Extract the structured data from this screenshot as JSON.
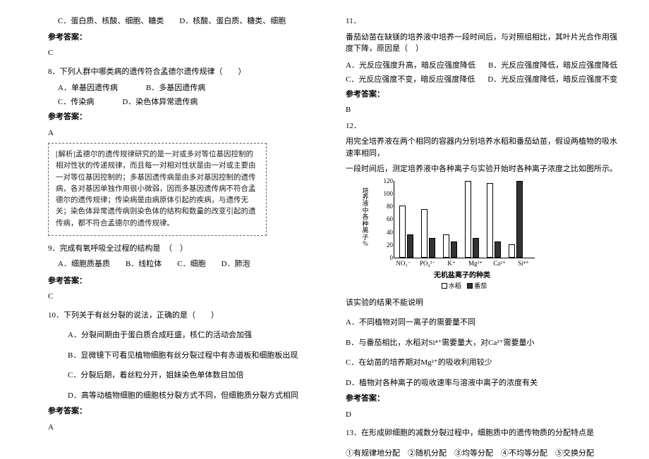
{
  "left": {
    "top_opts": "C．蛋白质、核酸、细胞、糖类　　D．核酸、蛋白质、糖类、细胞",
    "ans_label": "参考答案：",
    "ans_c1": "C",
    "q8": "8．下列人群中哪类病的遗传符合孟德尔遗传规律（　　）",
    "q8_a": "A．单基因遗传病",
    "q8_b": "B．多基因遗传病",
    "q8_c": "C．传染病",
    "q8_d": "D．染色体异常遗传病",
    "ans_a1": "A",
    "box_text": "[解析]孟德尔的遗传规律研究的是一对或多对等位基因控制的相对性状的传递规律，而且每一对相对性状是由一对或主要由一对等位基因控制的；多基因遗传病是由多对基因控制的遗传病，各对基因单独作用很小微弱，因而多基因遗传病不符合孟德尔的遗传规律；传染病是由病原体引起的疾病，与遗传无关；染色体异常遗传病则染色体的结构和数量的改变引起的遗传病，都不符合孟德尔的遗传规律。",
    "q9": "9．完成有氧呼吸全过程的结构是　（　）",
    "q9_opts": "A．细胞质基质　　B．线粒体　　C．细胞　　D．肺泡",
    "ans_c2": "C",
    "q10": "10．下列关于有丝分裂的说法，正确的是（　　）",
    "q10_a": "A．分裂间期由于蛋白质合成旺盛，核仁的活动会加强",
    "q10_b": "B．显微镜下可看见植物细胞有丝分裂过程中有赤道板和细胞板出现",
    "q10_c": "C．分裂后期，着丝粒分开，姐妹染色单体数目加倍",
    "q10_d": "D．高等动植物细胞的细胞核分裂方式不同，但细胞质分裂方式相同",
    "ans_a2": "A"
  },
  "right": {
    "q11_num": "11．",
    "q11_text": "番茄幼苗在缺镁的培养液中培养一段时间后，与对照组相比，其叶片光合作用强度下降，原因是（　）",
    "q11_a": "A．光反应强度升高，暗反应强度降低",
    "q11_b": "B．光反应强度降低，暗反应强度降低",
    "q11_c": "C．光反应强度不变，暗反应强度降低",
    "q11_d": "D．光反应强度降低，暗反应强度不变",
    "ans_label": "参考答案：",
    "ans_b": "B",
    "q12_num": "12．",
    "q12_p1": "用完全培养液在两个相同的容器内分别培养水稻和番茄幼苗，假设两植物的吸水速率相同，",
    "q12_p2": "一段时间后，测定培养液中各种离子与实验开始时各种离子浓度之比如图所示。",
    "chart": {
      "ytitle_lines": [
        "培",
        "养",
        "液",
        "中",
        "各",
        "种",
        "离",
        "子",
        "%"
      ],
      "yticks": [
        "120",
        "100",
        "80",
        "60",
        "40",
        "20",
        "0"
      ],
      "categories": [
        "NO₃⁻",
        "PO₄³⁻",
        "K⁺",
        "Mg²⁺",
        "Ca²⁺",
        "Si⁴⁺"
      ],
      "series": [
        {
          "name": "水稻",
          "cls": "white",
          "vals": [
            80,
            75,
            35,
            118,
            115,
            20
          ]
        },
        {
          "name": "番茄",
          "cls": "black",
          "vals": [
            35,
            30,
            25,
            30,
            25,
            118
          ]
        }
      ],
      "xtitle": "无机盐离子的种类",
      "legend_a": "水稻",
      "legend_b": "番茄"
    },
    "q12_after": "该实验的结果不能说明",
    "q12_a": "A．不同植物对同一离子的需要量不同",
    "q12_b": "B．与番茄相比，水稻对Si⁴⁺需要量大，对Ca²⁺需要量小",
    "q12_c": "C．在幼苗的培养期对Mg²⁺的吸收利用较少",
    "q12_d": "D．植物对各种离子的吸收速率与溶液中离子的浓度有关",
    "ans_d": "D",
    "q13": "13．在形成卵细胞的减数分裂过程中，细胞质中的遗传物质的分配特点是",
    "q13_opts": "①有规律地分配　②随机分配　③均等分配　④不均等分配　⑤交换分配"
  }
}
